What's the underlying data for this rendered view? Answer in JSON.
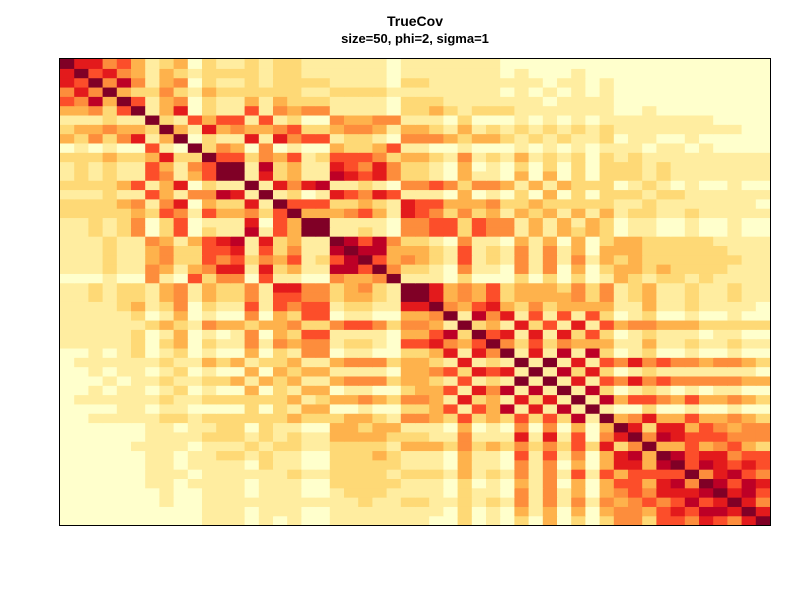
{
  "chart_data": {
    "type": "heatmap",
    "title": "TrueCov",
    "subtitle": "size=50, phi=2, sigma=1",
    "xlabel": "",
    "ylabel": "",
    "size": 50,
    "phi": 2,
    "sigma": 1,
    "value_range": [
      0,
      1
    ],
    "axes_visible": false,
    "grid": false,
    "legend": "none",
    "palette": [
      "#FFFFCC",
      "#FFEDA0",
      "#FED976",
      "#FEB24C",
      "#FD8D3C",
      "#FC4E2A",
      "#E31A1C",
      "#BD0026",
      "#800026"
    ],
    "palette_mode": "heat-reversed",
    "origin": "bottom-left",
    "seed": 2
  }
}
